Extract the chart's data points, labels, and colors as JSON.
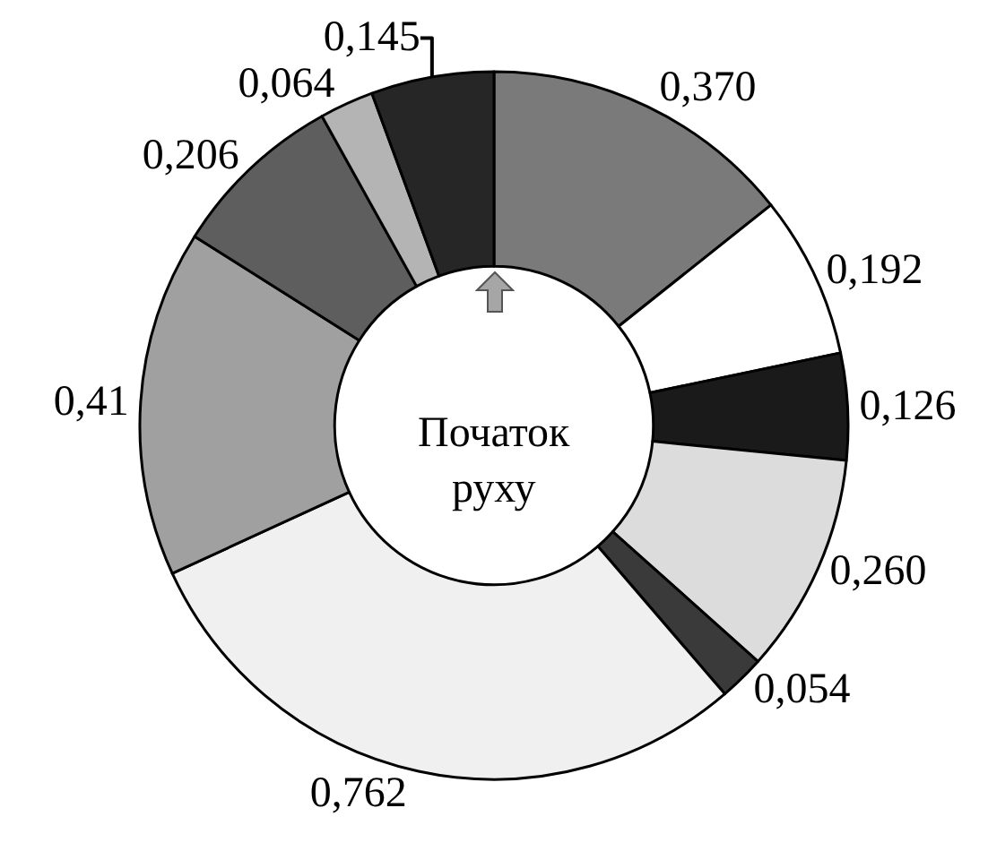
{
  "chart_data": {
    "type": "donut",
    "categories": [
      null,
      null,
      null,
      null,
      null,
      null,
      null,
      null,
      null,
      null
    ],
    "values": [
      0.37,
      0.192,
      0.126,
      0.26,
      0.054,
      0.762,
      0.41,
      0.206,
      0.064,
      0.145
    ],
    "value_labels": [
      "0,370",
      "0,192",
      "0,126",
      "0,260",
      "0,054",
      "0,762",
      "0,41",
      "0,206",
      "0,064",
      "0,145"
    ],
    "colors": [
      "#7a7a7a",
      "#ffffff",
      "#1a1a1a",
      "#dcdcdc",
      "#3a3a3a",
      "#f0f0f0",
      "#a0a0a0",
      "#5e5e5e",
      "#b4b4b4",
      "#262626"
    ],
    "annotations": [
      "Початок руху"
    ],
    "legend": false
  }
}
